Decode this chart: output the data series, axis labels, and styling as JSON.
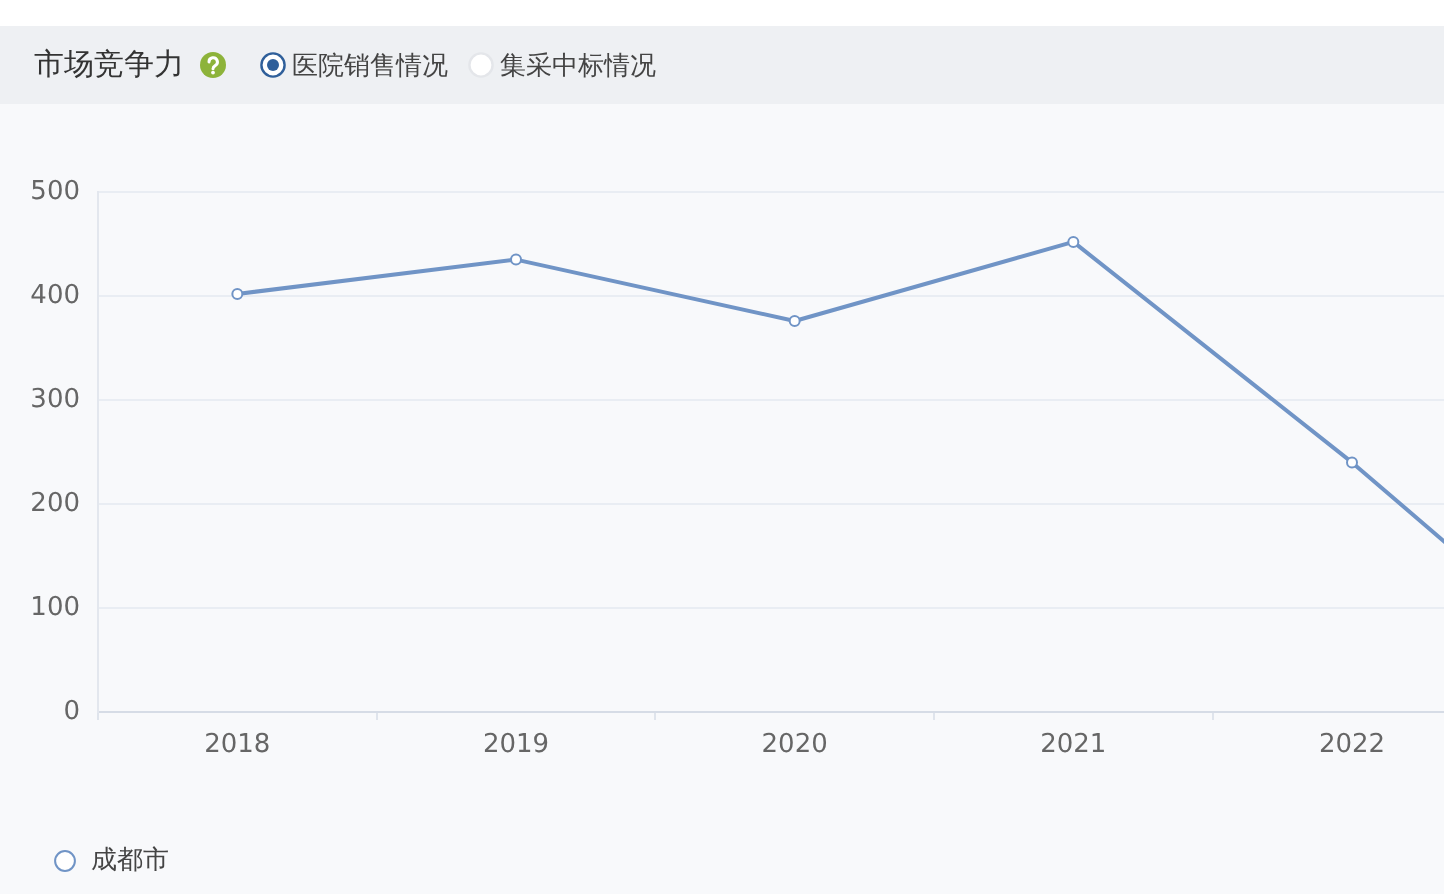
{
  "chart_data": {
    "type": "line",
    "title": "市场竞争力",
    "annotations": [
      "医院销售情况",
      "集采中标情况"
    ],
    "categories": [
      "2018",
      "2019",
      "2020",
      "2021",
      "2022",
      null
    ],
    "series": [
      {
        "name": "成都市",
        "color": "#7094c6",
        "values": [
          402,
          435,
          376,
          452,
          240,
          10
        ]
      }
    ],
    "ylim": [
      0,
      500
    ],
    "yticks": [
      0,
      100,
      200,
      300,
      400,
      500
    ],
    "grid": "y",
    "legend": "bottom left",
    "marker": "circle",
    "line_style": "solid"
  }
}
